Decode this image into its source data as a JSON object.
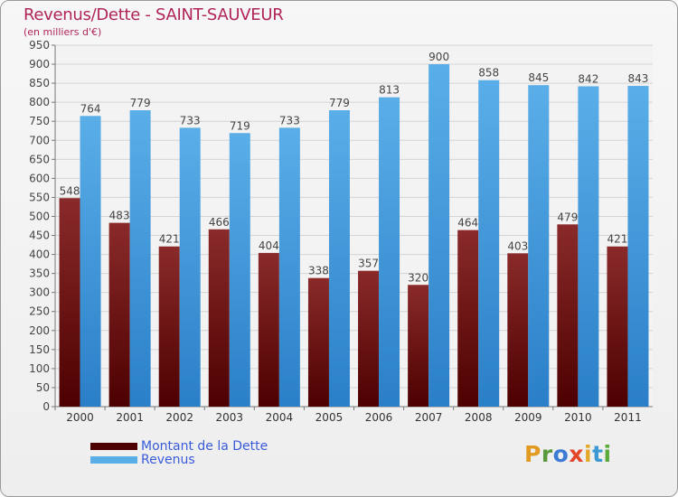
{
  "header": {
    "title": "Revenus/Dette - SAINT-SAUVEUR",
    "subtitle": "(en milliers d'€)"
  },
  "legend": {
    "debt_label": "Montant de la Dette",
    "revenue_label": "Revenus"
  },
  "logo": {
    "text": "Proxiti",
    "letters": [
      "P",
      "r",
      "o",
      "x",
      "i",
      "t",
      "i"
    ],
    "colors": [
      "#e39a22",
      "#5a9a3a",
      "#3b7bd4",
      "#e3452b",
      "#e3a82a",
      "#3b9ad4",
      "#5aaa3a"
    ]
  },
  "colors": {
    "debt_top": "#8a2a2a",
    "debt_bottom": "#4d0000",
    "revenue_top": "#5aaee8",
    "revenue_bottom": "#2a7fc8",
    "title": "#b0245a"
  },
  "chart_data": {
    "type": "bar",
    "title": "Revenus/Dette - SAINT-SAUVEUR",
    "ylabel": "(en milliers d'€)",
    "xlabel": "",
    "categories": [
      "2000",
      "2001",
      "2002",
      "2003",
      "2004",
      "2005",
      "2006",
      "2007",
      "2008",
      "2009",
      "2010",
      "2011"
    ],
    "ylim": [
      0,
      950
    ],
    "ytick_step": 50,
    "grid": true,
    "legend_position": "bottom-left",
    "series": [
      {
        "name": "Montant de la Dette",
        "values": [
          548,
          483,
          421,
          466,
          404,
          338,
          357,
          320,
          464,
          403,
          479,
          421
        ]
      },
      {
        "name": "Revenus",
        "values": [
          764,
          779,
          733,
          719,
          733,
          779,
          813,
          900,
          858,
          845,
          842,
          843
        ]
      }
    ]
  }
}
